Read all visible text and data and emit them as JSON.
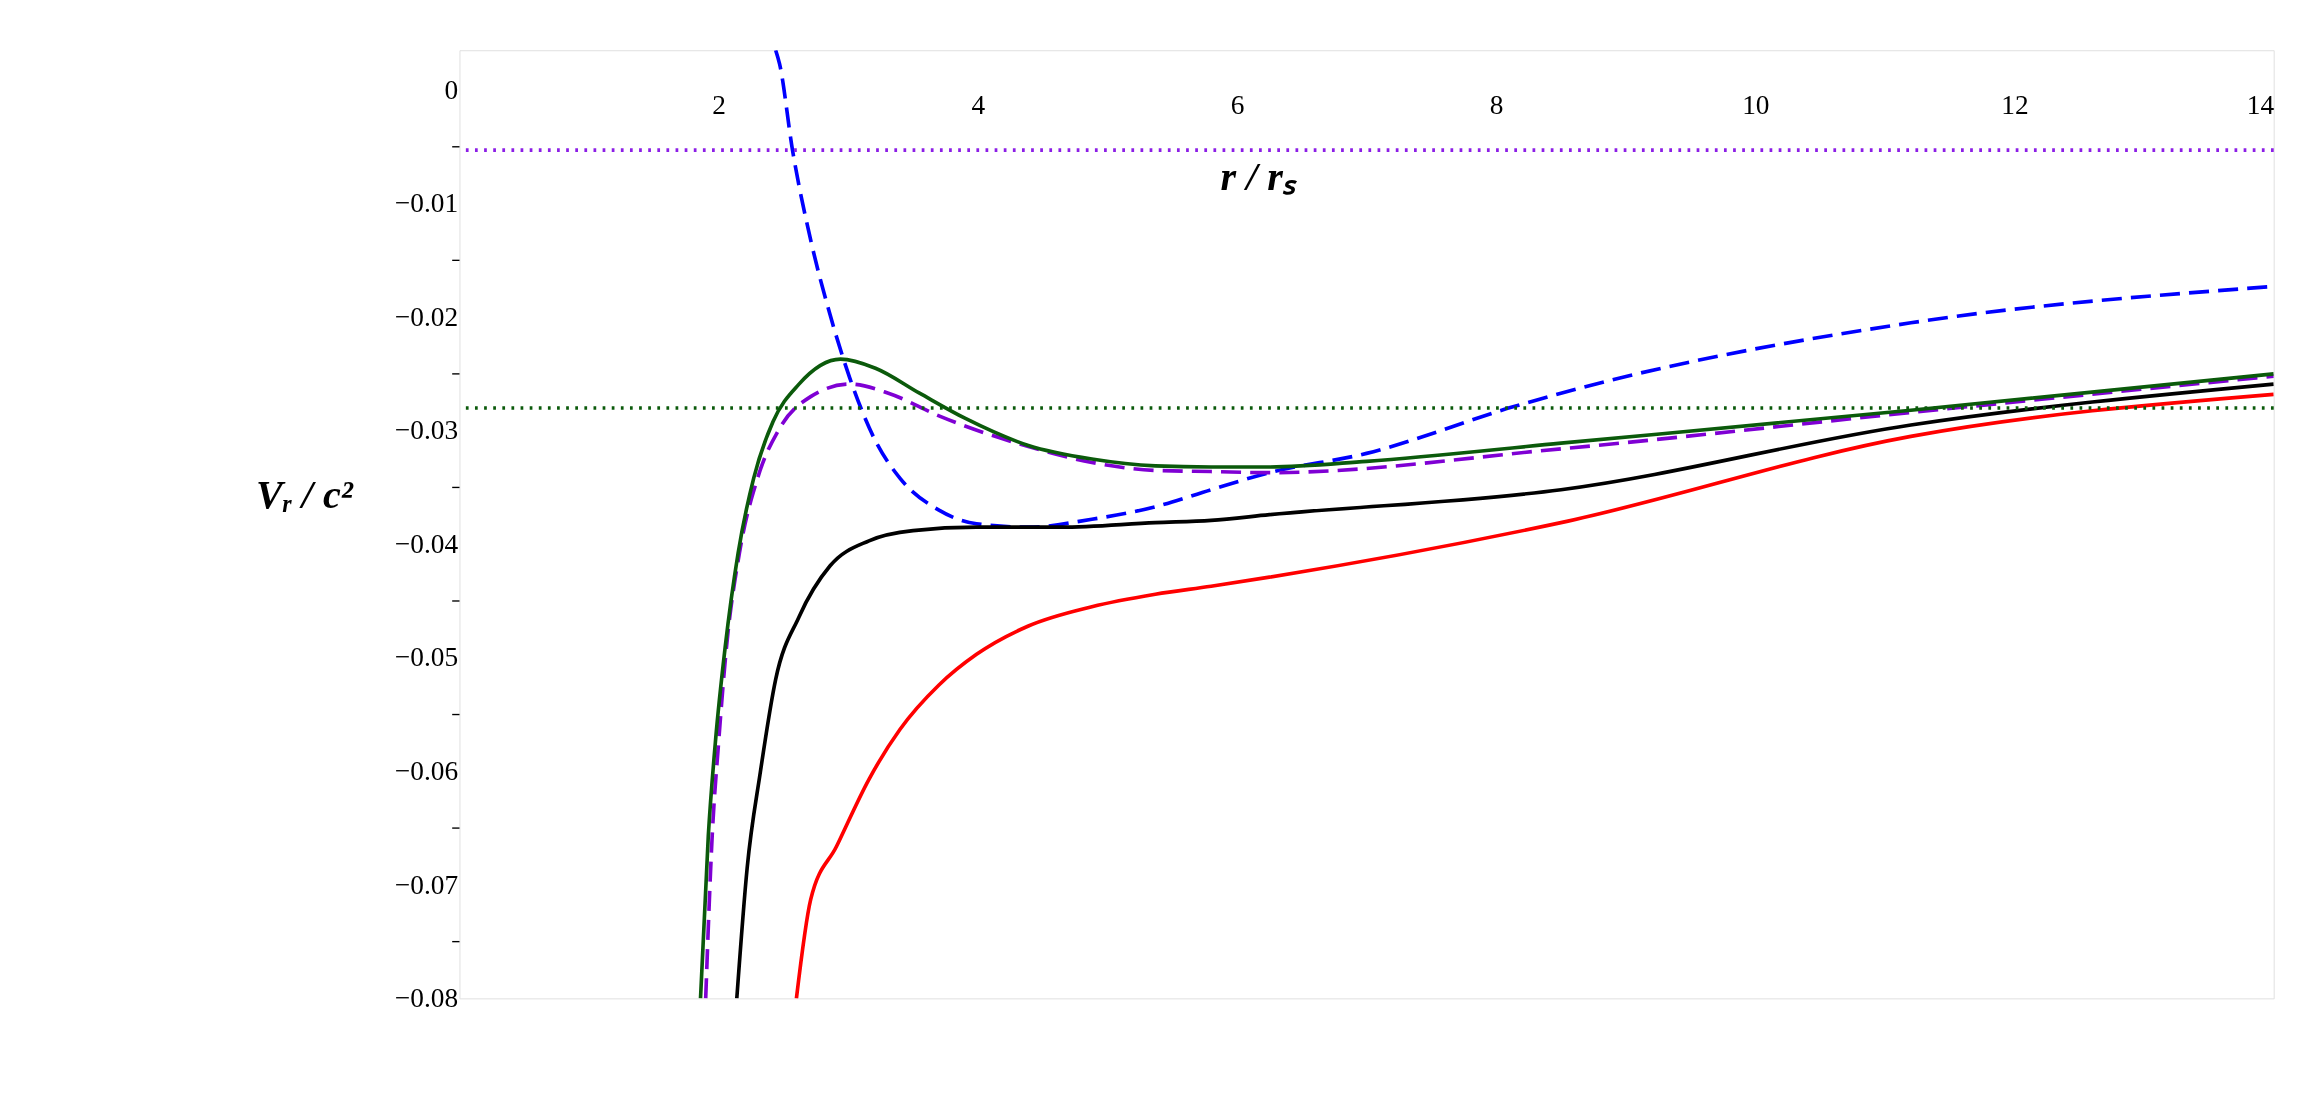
{
  "chart_data": {
    "type": "line",
    "xlabel": "r / rₛ",
    "ylabel": "Vᵣ / c²",
    "xlim": [
      0,
      14
    ],
    "ylim": [
      -0.08,
      0.0035
    ],
    "xticks": [
      2,
      4,
      6,
      8,
      10,
      12,
      14
    ],
    "yticks": [
      -0.08,
      {
        "value": -0.075,
        "label": null
      },
      -0.07,
      {
        "value": -0.065,
        "label": null
      },
      -0.06,
      {
        "value": -0.055,
        "label": null
      },
      -0.05,
      {
        "value": -0.045,
        "label": null
      },
      -0.04,
      {
        "value": -0.035,
        "label": null
      },
      -0.03,
      {
        "value": -0.025,
        "label": null
      },
      -0.02,
      {
        "value": -0.015,
        "label": null
      },
      -0.01,
      {
        "value": -0.005,
        "label": null
      },
      0
    ],
    "grid": false,
    "marker": "none",
    "series": [
      {
        "color": "#0000ff",
        "line_style": "dashed",
        "x": [
          2.44,
          2.47,
          2.57,
          2.71,
          2.86,
          3.01,
          3.21,
          3.4,
          3.7,
          3.99,
          4.39,
          4.88,
          5.37,
          5.8,
          6.25,
          7.0,
          8.13,
          8.5,
          11.2,
          14
        ],
        "values": [
          0.0035,
          0.0023,
          -0.0053,
          -0.0132,
          -0.0198,
          -0.0253,
          -0.0309,
          -0.0342,
          -0.037,
          -0.0382,
          -0.0385,
          -0.0378,
          -0.0367,
          -0.0352,
          -0.0337,
          -0.032,
          -0.0279,
          -0.0267,
          -0.0205,
          -0.0173
        ]
      },
      {
        "color": "#ff0000",
        "line_style": "solid",
        "x": [
          2.6,
          2.71,
          2.91,
          3.16,
          3.4,
          3.7,
          3.99,
          4.39,
          4.88,
          5.37,
          5.8,
          6.25,
          8.5,
          11.2,
          14
        ],
        "values": [
          -0.08,
          -0.0713,
          -0.0666,
          -0.0607,
          -0.0563,
          -0.0524,
          -0.0497,
          -0.0472,
          -0.0455,
          -0.0444,
          -0.0437,
          -0.0429,
          -0.0381,
          -0.0305,
          -0.0268
        ]
      },
      {
        "color": "#000000",
        "line_style": "solid",
        "x": [
          2.14,
          2.22,
          2.32,
          2.44,
          2.62,
          2.86,
          3.16,
          3.5,
          3.99,
          4.64,
          5.37,
          5.8,
          6.25,
          8.5,
          11.2,
          14
        ],
        "values": [
          -0.08,
          -0.0685,
          -0.0602,
          -0.0519,
          -0.0464,
          -0.0419,
          -0.0397,
          -0.0388,
          -0.0385,
          -0.0385,
          -0.0381,
          -0.0379,
          -0.0374,
          -0.0352,
          -0.0295,
          -0.0259
        ]
      },
      {
        "color": "#7f00d4",
        "line_style": "dashed",
        "x": [
          1.9,
          1.95,
          2.0,
          2.06,
          2.16,
          2.3,
          2.47,
          2.71,
          3.01,
          3.31,
          3.7,
          4.39,
          4.88,
          5.37,
          5.8,
          6.25,
          8.5,
          11.2,
          14
        ],
        "values": [
          -0.08,
          -0.0657,
          -0.0574,
          -0.0491,
          -0.0408,
          -0.0342,
          -0.0298,
          -0.027,
          -0.0259,
          -0.0267,
          -0.0287,
          -0.0314,
          -0.0328,
          -0.0335,
          -0.0336,
          -0.0337,
          -0.0316,
          -0.0284,
          -0.0252
        ]
      },
      {
        "color": "#0b5a0b",
        "line_style": "solid",
        "x": [
          1.86,
          1.92,
          1.975,
          2.05,
          2.15,
          2.27,
          2.42,
          2.62,
          2.94,
          3.21,
          3.55,
          3.9,
          4.39,
          4.88,
          5.37,
          5.8,
          6.25,
          7.0,
          8.5,
          11.2,
          14
        ],
        "values": [
          -0.08,
          -0.0657,
          -0.0574,
          -0.0491,
          -0.0408,
          -0.0342,
          -0.0292,
          -0.0259,
          -0.0237,
          -0.0245,
          -0.0267,
          -0.0289,
          -0.0313,
          -0.0325,
          -0.0331,
          -0.0332,
          -0.0332,
          -0.0327,
          -0.0311,
          -0.0282,
          -0.025
        ]
      }
    ],
    "ref_lines": [
      {
        "axis": "y",
        "value": -0.0053,
        "color": "#8c1ee6",
        "line_style": "dotted"
      },
      {
        "axis": "y",
        "value": -0.028,
        "color": "#0b5a0b",
        "line_style": "dotted"
      }
    ]
  }
}
